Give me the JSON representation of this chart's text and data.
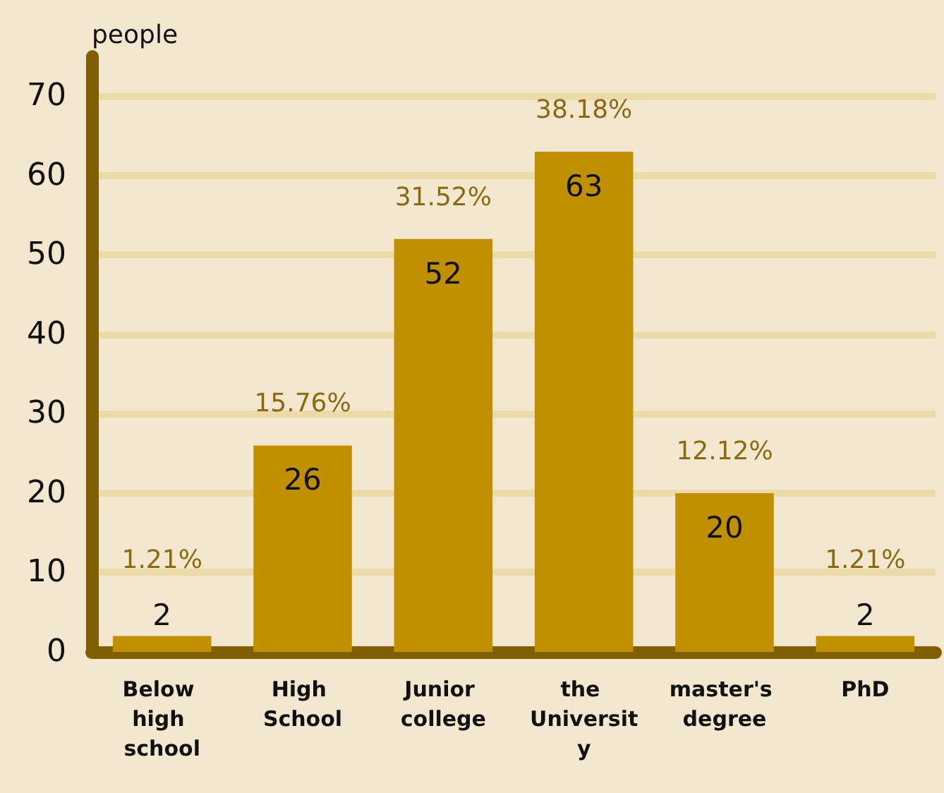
{
  "chart_data": {
    "type": "bar",
    "ylabel": "people",
    "categories": [
      "Below high school",
      "High School",
      "Junior college",
      "the University",
      "master's degree",
      "PhD"
    ],
    "values": [
      2,
      26,
      52,
      63,
      20,
      2
    ],
    "annotations": [
      {
        "text": "1.21%",
        "x": "Below high school",
        "y": 2
      },
      {
        "text": "15.76%",
        "x": "High School",
        "y": 26
      },
      {
        "text": "31.52%",
        "x": "Junior college",
        "y": 52
      },
      {
        "text": "38.18%",
        "x": "the University",
        "y": 63
      },
      {
        "text": "12.12%",
        "x": "master's degree",
        "y": 20
      },
      {
        "text": "1.21%",
        "x": "PhD",
        "y": 2
      }
    ],
    "data_labels": true,
    "color": "#c09000",
    "ylim": [
      0,
      75
    ],
    "yticks": [
      0,
      10,
      20,
      30,
      40,
      50,
      60,
      70
    ],
    "grid": "y"
  }
}
